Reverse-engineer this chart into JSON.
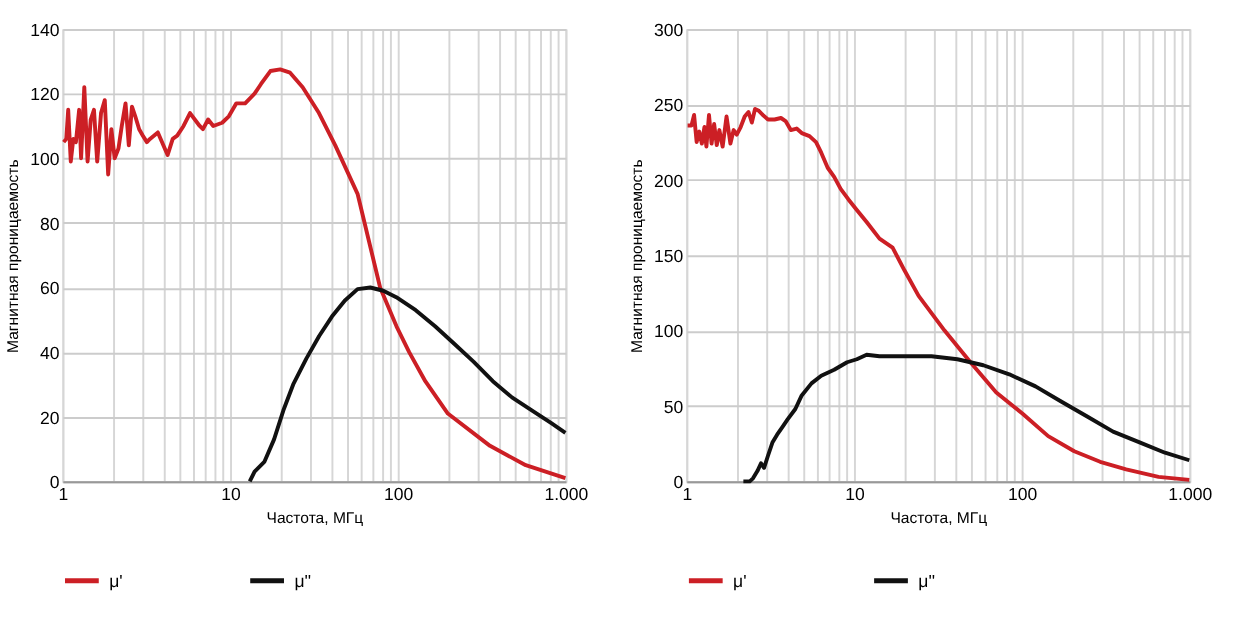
{
  "chart_data": [
    {
      "type": "line",
      "xlabel": "Частота, МГц",
      "ylabel": "Магнитная проницаемость",
      "log": "x",
      "grid": true,
      "legend": "bottom",
      "marker": "none",
      "line_style": "solid",
      "xlim": [
        1,
        1000
      ],
      "ylim": [
        0,
        140
      ],
      "yticks": [
        0,
        20,
        40,
        60,
        80,
        100,
        120,
        140
      ],
      "xticks": [
        1,
        {
          "value": 2,
          "label": null
        },
        {
          "value": 3,
          "label": null
        },
        {
          "value": 4,
          "label": null
        },
        {
          "value": 5,
          "label": null
        },
        {
          "value": 6,
          "label": null
        },
        {
          "value": 7,
          "label": null
        },
        {
          "value": 8,
          "label": null
        },
        {
          "value": 9,
          "label": null
        },
        10,
        {
          "value": 20,
          "label": null
        },
        {
          "value": 30,
          "label": null
        },
        {
          "value": 40,
          "label": null
        },
        {
          "value": 50,
          "label": null
        },
        {
          "value": 60,
          "label": null
        },
        {
          "value": 70,
          "label": null
        },
        {
          "value": 80,
          "label": null
        },
        {
          "value": 90,
          "label": null
        },
        100,
        {
          "value": 200,
          "label": null
        },
        {
          "value": 300,
          "label": null
        },
        {
          "value": 400,
          "label": null
        },
        {
          "value": 500,
          "label": null
        },
        {
          "value": 600,
          "label": null
        },
        {
          "value": 700,
          "label": null
        },
        {
          "value": 800,
          "label": null
        },
        {
          "value": 900,
          "label": null
        },
        {
          "value": 1000,
          "label": "1.000"
        }
      ],
      "series": [
        {
          "name": "μ'",
          "color": "#cc1f25",
          "x": [
            1.018,
            1.055,
            1.083,
            1.122,
            1.162,
            1.204,
            1.259,
            1.293,
            1.351,
            1.413,
            1.476,
            1.543,
            1.613,
            1.7,
            1.79,
            1.875,
            1.96,
            2.05,
            2.16,
            2.26,
            2.38,
            2.49,
            2.6,
            2.72,
            2.87,
            3.02,
            3.19,
            3.33,
            3.71,
            4.24,
            4.55,
            4.84,
            5.28,
            5.77,
            6.59,
            6.89,
            7.4,
            7.94,
            8.97,
            9.83,
            10.9,
            12.3,
            14.0,
            15.3,
            17.4,
            19.9,
            22.8,
            27.1,
            33.9,
            42.4,
            57.6,
            78.5,
            98.3,
            117,
            146,
            199,
            355,
            580,
            1000
          ],
          "values": [
            105,
            106,
            115,
            99,
            106,
            105,
            115,
            100,
            122,
            99,
            112,
            115,
            99,
            114,
            118,
            95,
            109,
            100,
            103,
            110,
            117,
            104,
            116,
            113,
            109,
            107,
            105,
            106,
            108,
            101,
            106,
            107,
            110,
            114,
            110,
            109,
            112,
            110,
            111,
            113,
            117,
            117,
            120,
            123,
            127,
            127.5,
            126.5,
            122,
            114,
            104,
            89,
            60,
            48,
            40,
            31,
            21,
            11,
            5,
            1
          ]
        },
        {
          "name": "μ''",
          "color": "#111111",
          "x": [
            13.1,
            14,
            16,
            18.3,
            20.8,
            23.8,
            28.5,
            34,
            40.5,
            48.4,
            57.6,
            68.6,
            82,
            98,
            128,
            167,
            218,
            284,
            369,
            480,
            630,
            824,
            1000
          ],
          "values": [
            0,
            3,
            6,
            13,
            22,
            30,
            38,
            45,
            51,
            56,
            59.5,
            60,
            59,
            57,
            53,
            48,
            42.5,
            37,
            31,
            26,
            22,
            18,
            15
          ]
        }
      ]
    },
    {
      "type": "line",
      "xlabel": "Частота, МГц",
      "ylabel": "Магнитная проницаемость",
      "log": "x",
      "grid": true,
      "legend": "bottom",
      "marker": "none",
      "line_style": "solid",
      "xlim": [
        1,
        1000
      ],
      "ylim": [
        0,
        300
      ],
      "yticks": [
        0,
        50,
        100,
        150,
        200,
        250,
        300
      ],
      "xticks": [
        1,
        {
          "value": 2,
          "label": null
        },
        {
          "value": 3,
          "label": null
        },
        {
          "value": 4,
          "label": null
        },
        {
          "value": 5,
          "label": null
        },
        {
          "value": 6,
          "label": null
        },
        {
          "value": 7,
          "label": null
        },
        {
          "value": 8,
          "label": null
        },
        {
          "value": 9,
          "label": null
        },
        10,
        {
          "value": 20,
          "label": null
        },
        {
          "value": 30,
          "label": null
        },
        {
          "value": 40,
          "label": null
        },
        {
          "value": 50,
          "label": null
        },
        {
          "value": 60,
          "label": null
        },
        {
          "value": 70,
          "label": null
        },
        {
          "value": 80,
          "label": null
        },
        {
          "value": 90,
          "label": null
        },
        100,
        {
          "value": 200,
          "label": null
        },
        {
          "value": 300,
          "label": null
        },
        {
          "value": 400,
          "label": null
        },
        {
          "value": 500,
          "label": null
        },
        {
          "value": 600,
          "label": null
        },
        {
          "value": 700,
          "label": null
        },
        {
          "value": 800,
          "label": null
        },
        {
          "value": 900,
          "label": null
        },
        {
          "value": 1000,
          "label": "1.000"
        }
      ],
      "series": [
        {
          "name": "μ'",
          "color": "#cc1f25",
          "x": [
            1.018,
            1.074,
            1.113,
            1.153,
            1.195,
            1.238,
            1.283,
            1.318,
            1.366,
            1.415,
            1.466,
            1.52,
            1.575,
            1.647,
            1.738,
            1.833,
            1.916,
            2.0,
            2.11,
            2.23,
            2.35,
            2.46,
            2.57,
            2.69,
            2.86,
            3.07,
            3.36,
            3.67,
            3.91,
            4.2,
            4.55,
            4.88,
            5.43,
            5.94,
            6.38,
            6.97,
            7.62,
            8.33,
            9.27,
            10.4,
            11.9,
            14.2,
            17.0,
            20.0,
            24.3,
            34.7,
            49.5,
            70.6,
            101,
            144,
            206,
            294,
            420,
            655,
            1000
          ],
          "values": [
            236,
            236,
            243,
            225,
            232,
            224,
            235,
            222,
            243,
            224,
            237,
            223,
            233,
            222,
            242,
            224,
            233,
            230,
            235,
            242,
            245,
            238,
            247,
            246,
            243,
            240,
            240,
            241,
            239,
            233,
            234,
            231,
            229,
            225,
            218,
            208,
            202,
            194,
            187,
            180,
            172,
            161,
            155,
            140,
            123,
            100,
            79,
            59,
            45,
            30,
            20,
            13,
            8,
            3,
            1
          ]
        },
        {
          "name": "μ''",
          "color": "#111111",
          "x": [
            2.19,
            2.39,
            2.5,
            2.66,
            2.79,
            2.91,
            3.07,
            3.27,
            3.48,
            3.74,
            4.01,
            4.47,
            4.88,
            5.58,
            6.38,
            7.62,
            9.1,
            10.4,
            11.9,
            14.2,
            18.6,
            29.0,
            41.4,
            59.1,
            84.4,
            121,
            172,
            246,
            351,
            501,
            716,
            1000
          ],
          "values": [
            0,
            0,
            2,
            7,
            12,
            9,
            17,
            26,
            31,
            36,
            41,
            48,
            57,
            65,
            70,
            74,
            79,
            81,
            84,
            83,
            83,
            83,
            81,
            77,
            71,
            63,
            53,
            43,
            33,
            26,
            19,
            14
          ]
        }
      ]
    }
  ]
}
